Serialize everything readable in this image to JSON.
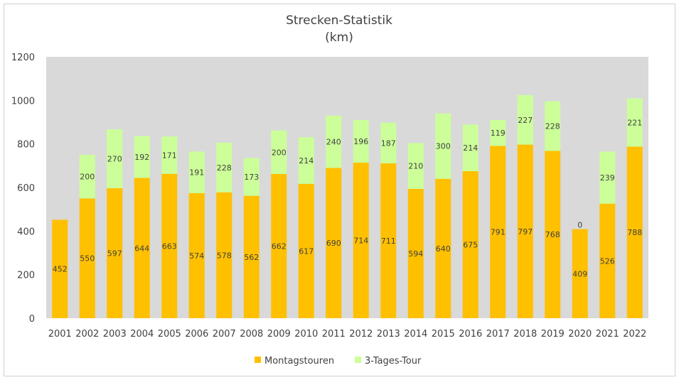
{
  "chart_data": {
    "type": "bar",
    "stacked": true,
    "title": "Strecken-Statistik",
    "subtitle": "(km)",
    "xlabel": "",
    "ylabel": "",
    "categories": [
      "2001",
      "2002",
      "2003",
      "2004",
      "2005",
      "2006",
      "2007",
      "2008",
      "2009",
      "2010",
      "2011",
      "2012",
      "2013",
      "2014",
      "2015",
      "2016",
      "2017",
      "2018",
      "2019",
      "2020",
      "2021",
      "2022"
    ],
    "series": [
      {
        "name": "Montagstouren",
        "color": "#ffc000",
        "values": [
          452,
          550,
          597,
          644,
          663,
          574,
          578,
          562,
          662,
          617,
          690,
          714,
          711,
          594,
          640,
          675,
          791,
          797,
          768,
          409,
          526,
          788
        ],
        "labels": [
          "452",
          "550",
          "597",
          "644",
          "663",
          "574",
          "578",
          "562",
          "662",
          "617",
          "690",
          "714",
          "711",
          "594",
          "640",
          "675",
          "791",
          "797",
          "768",
          "409",
          "526",
          "788"
        ]
      },
      {
        "name": "3-Tages-Tour",
        "color": "#ccff99",
        "values": [
          0,
          200,
          270,
          192,
          171,
          191,
          228,
          173,
          200,
          214,
          240,
          196,
          187,
          210,
          300,
          214,
          119,
          227,
          228,
          0,
          239,
          221
        ],
        "labels": [
          "",
          "200",
          "270",
          "192",
          "171",
          "191",
          "228",
          "173",
          "200",
          "214",
          "240",
          "196",
          "187",
          "210",
          "300",
          "214",
          "119",
          "227",
          "228",
          "0",
          "239",
          "221"
        ]
      }
    ],
    "ylim": [
      0,
      1200
    ],
    "yticks": [
      "0",
      "200",
      "400",
      "600",
      "800",
      "1000",
      "1200"
    ],
    "grid": false,
    "plot_background": "#d9d9d9",
    "legend_position": "bottom"
  }
}
